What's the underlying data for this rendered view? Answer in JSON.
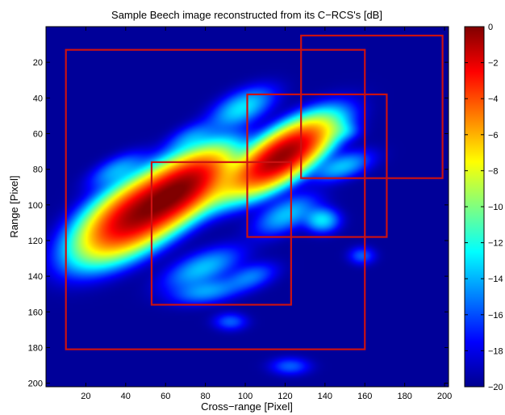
{
  "chart_data": {
    "type": "heatmap",
    "title": "Sample Beech image reconstructed from its C−RCS's [dB]",
    "xlabel": "Cross−range [Pixel]",
    "ylabel": "Range [Pixel]",
    "xlim": [
      0,
      202
    ],
    "ylim": [
      202,
      0
    ],
    "x_ticks": [
      20,
      40,
      60,
      80,
      100,
      120,
      140,
      160,
      180,
      200
    ],
    "y_ticks": [
      20,
      40,
      60,
      80,
      100,
      120,
      140,
      160,
      180,
      200
    ],
    "colorbar": {
      "range": [
        -20,
        0
      ],
      "ticks": [
        0,
        -2,
        -4,
        -6,
        -8,
        -10,
        -12,
        -14,
        -16,
        -18,
        -20
      ],
      "colormap": "jet"
    },
    "background_db": -19.5,
    "blobs": [
      {
        "x": 45,
        "y": 105,
        "sx": 17,
        "sy": 8,
        "angle": -38,
        "peak_db": -1
      },
      {
        "x": 68,
        "y": 90,
        "sx": 15,
        "sy": 7,
        "angle": -40,
        "peak_db": -1
      },
      {
        "x": 118,
        "y": 72,
        "sx": 15,
        "sy": 6,
        "angle": -38,
        "peak_db": -0.5
      },
      {
        "x": 92,
        "y": 88,
        "sx": 12,
        "sy": 5,
        "angle": -40,
        "peak_db": -11
      },
      {
        "x": 120,
        "y": 105,
        "sx": 10,
        "sy": 5,
        "angle": -30,
        "peak_db": -15
      },
      {
        "x": 98,
        "y": 45,
        "sx": 10,
        "sy": 5,
        "angle": -30,
        "peak_db": -14
      },
      {
        "x": 148,
        "y": 78,
        "sx": 9,
        "sy": 4,
        "angle": -20,
        "peak_db": -15
      },
      {
        "x": 138,
        "y": 108,
        "sx": 5,
        "sy": 4,
        "angle": 0,
        "peak_db": -14
      },
      {
        "x": 78,
        "y": 135,
        "sx": 12,
        "sy": 5,
        "angle": -25,
        "peak_db": -15
      },
      {
        "x": 80,
        "y": 148,
        "sx": 10,
        "sy": 4,
        "angle": -10,
        "peak_db": -16
      },
      {
        "x": 35,
        "y": 80,
        "sx": 9,
        "sy": 4,
        "angle": -30,
        "peak_db": -16
      },
      {
        "x": 72,
        "y": 62,
        "sx": 8,
        "sy": 4,
        "angle": -30,
        "peak_db": -17
      },
      {
        "x": 102,
        "y": 140,
        "sx": 8,
        "sy": 4,
        "angle": -20,
        "peak_db": -17
      },
      {
        "x": 148,
        "y": 58,
        "sx": 5,
        "sy": 3,
        "angle": 0,
        "peak_db": -17
      },
      {
        "x": 92,
        "y": 165,
        "sx": 5,
        "sy": 3,
        "angle": 0,
        "peak_db": -18
      },
      {
        "x": 122,
        "y": 190,
        "sx": 6,
        "sy": 3,
        "angle": 0,
        "peak_db": -18
      },
      {
        "x": 158,
        "y": 128,
        "sx": 4,
        "sy": 3,
        "angle": 0,
        "peak_db": -18
      }
    ],
    "boxes": [
      {
        "x1": 10,
        "y1": 13,
        "x2": 160,
        "y2": 181
      },
      {
        "x1": 53,
        "y1": 76,
        "x2": 123,
        "y2": 156
      },
      {
        "x1": 101,
        "y1": 38,
        "x2": 171,
        "y2": 118
      },
      {
        "x1": 128,
        "y1": 5,
        "x2": 199,
        "y2": 85
      }
    ],
    "box_color": "#cc1111"
  }
}
